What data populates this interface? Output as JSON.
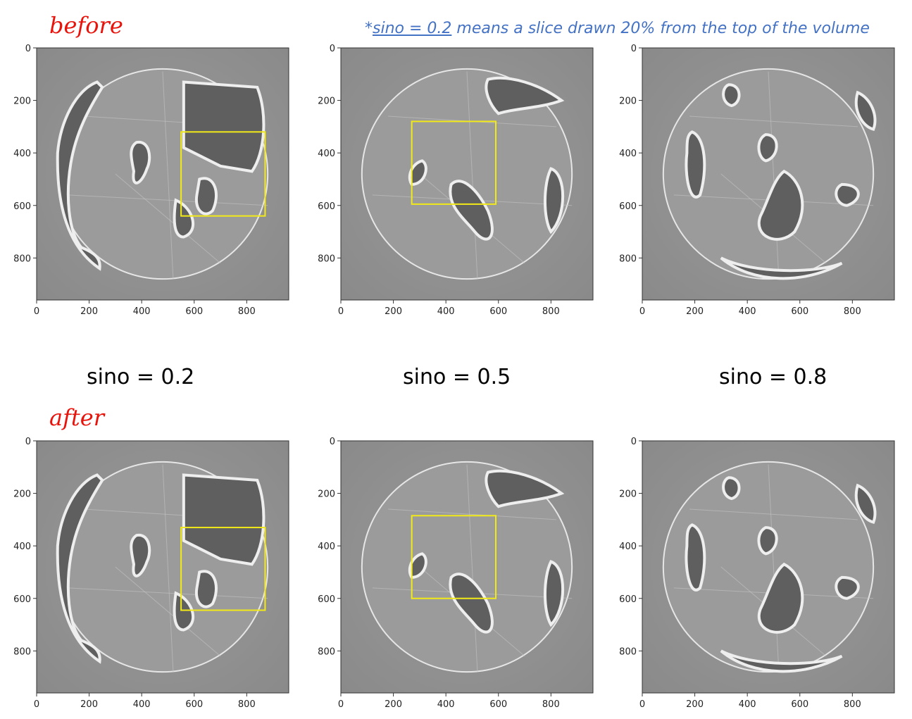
{
  "labels": {
    "before": "before",
    "after": "after"
  },
  "note": {
    "star": "*",
    "underlined": "sino = 0.2",
    "rest": " means a slice drawn 20% from the top of the volume",
    "color": "#4472c4"
  },
  "captions": [
    "sino = 0.2",
    "sino = 0.5",
    "sino = 0.8"
  ],
  "axes": {
    "y_ticks": [
      0,
      200,
      400,
      600,
      800
    ],
    "x_ticks": [
      0,
      200,
      400,
      600,
      800
    ],
    "range": [
      0,
      960
    ]
  },
  "panels": [
    {
      "id": "before-0.2",
      "roi": [
        550,
        320,
        870,
        640
      ]
    },
    {
      "id": "before-0.5",
      "roi": [
        270,
        280,
        590,
        595
      ]
    },
    {
      "id": "before-0.8",
      "roi": null
    },
    {
      "id": "after-0.2",
      "roi": [
        550,
        330,
        870,
        645
      ]
    },
    {
      "id": "after-0.5",
      "roi": [
        270,
        285,
        590,
        600
      ]
    },
    {
      "id": "after-0.8",
      "roi": null
    }
  ],
  "colors": {
    "label_red": "#e8140c",
    "roi_yellow": "#f2ea18",
    "slice_gray": "#8c8c8c"
  }
}
